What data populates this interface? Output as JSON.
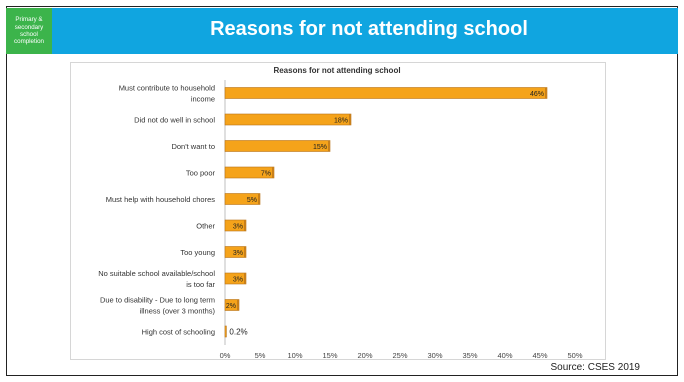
{
  "badge": {
    "lines": [
      "Primary &",
      "secondary",
      "school",
      "completion"
    ]
  },
  "slide_title": "Reasons for not attending school",
  "source": "Source: CSES 2019",
  "colors": {
    "bar": "#f5a31a",
    "bar_stroke": "#b8741a",
    "header": "#10a5e0",
    "badge": "#3cb44b"
  },
  "chart_data": {
    "type": "bar",
    "orientation": "horizontal",
    "title": "Reasons for not attending school",
    "categories": [
      [
        "Must contribute to household",
        "income"
      ],
      [
        "Did not do well in school"
      ],
      [
        "Don't want to"
      ],
      [
        "Too poor"
      ],
      [
        "Must help with household chores"
      ],
      [
        "Other"
      ],
      [
        "Too young"
      ],
      [
        "No suitable school available/school",
        "is too far"
      ],
      [
        "Due to disability - Due to long term",
        "illness (over 3 months)"
      ],
      [
        "High cost of schooling"
      ]
    ],
    "values": [
      46,
      18,
      15,
      7,
      5,
      3,
      3,
      3,
      2,
      0.2
    ],
    "value_labels": [
      "46%",
      "18%",
      "15%",
      "7%",
      "5%",
      "3%",
      "3%",
      "3%",
      "2%",
      "0.2%"
    ],
    "x_ticks": [
      "0%",
      "5%",
      "10%",
      "15%",
      "20%",
      "25%",
      "30%",
      "35%",
      "40%",
      "45%",
      "50%"
    ],
    "xlim": [
      0,
      50
    ],
    "grid": false
  }
}
